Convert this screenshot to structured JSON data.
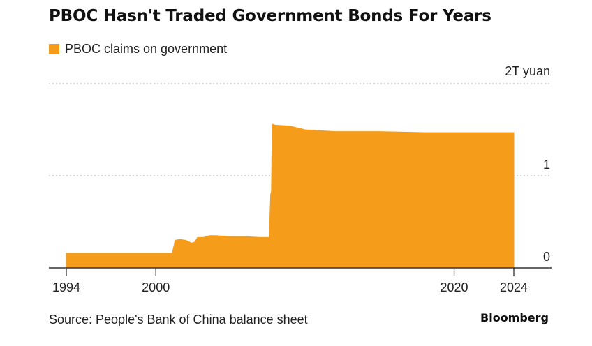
{
  "header": {
    "title": "PBOC Hasn't Traded Government Bonds For Years"
  },
  "legend": {
    "label": "PBOC claims on government"
  },
  "footer": {
    "source": "Source: People's Bank of China balance sheet",
    "brand": "Bloomberg"
  },
  "colors": {
    "series": "#f59c1a",
    "grid": "#bdbdbd",
    "axis": "#333333",
    "text": "#222222"
  },
  "chart_data": {
    "type": "area",
    "title": "PBOC Hasn't Traded Government Bonds For Years",
    "xlabel": "",
    "ylabel": "2T yuan",
    "xlim": [
      1994,
      2024
    ],
    "ylim": [
      0,
      2
    ],
    "x_ticks": [
      1994,
      2000,
      2020,
      2024
    ],
    "y_ticks": [
      {
        "value": 0,
        "label": "0"
      },
      {
        "value": 1,
        "label": "1"
      },
      {
        "value": 2,
        "label": "2T yuan"
      }
    ],
    "grid": true,
    "legend_position": "top-left",
    "series": [
      {
        "name": "PBOC claims on government",
        "x": [
          1994,
          1995,
          1997,
          1999,
          2000,
          2001.1,
          2001.3,
          2001.6,
          2002.0,
          2002.4,
          2002.6,
          2002.8,
          2003.2,
          2003.6,
          2004,
          2005,
          2006,
          2007,
          2007.6,
          2007.7,
          2007.75,
          2007.8,
          2008,
          2009,
          2010,
          2011,
          2012,
          2015,
          2018,
          2020,
          2022,
          2024
        ],
        "y": [
          0.16,
          0.16,
          0.16,
          0.16,
          0.16,
          0.16,
          0.3,
          0.31,
          0.3,
          0.27,
          0.28,
          0.33,
          0.33,
          0.35,
          0.35,
          0.34,
          0.34,
          0.33,
          0.33,
          0.8,
          0.83,
          1.56,
          1.55,
          1.54,
          1.5,
          1.49,
          1.48,
          1.48,
          1.47,
          1.47,
          1.47,
          1.47
        ]
      }
    ]
  }
}
